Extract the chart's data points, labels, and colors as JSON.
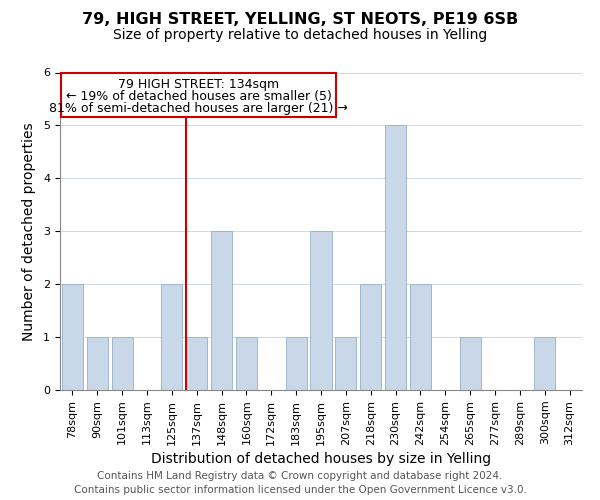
{
  "title": "79, HIGH STREET, YELLING, ST NEOTS, PE19 6SB",
  "subtitle": "Size of property relative to detached houses in Yelling",
  "xlabel": "Distribution of detached houses by size in Yelling",
  "ylabel": "Number of detached properties",
  "bins": [
    "78sqm",
    "90sqm",
    "101sqm",
    "113sqm",
    "125sqm",
    "137sqm",
    "148sqm",
    "160sqm",
    "172sqm",
    "183sqm",
    "195sqm",
    "207sqm",
    "218sqm",
    "230sqm",
    "242sqm",
    "254sqm",
    "265sqm",
    "277sqm",
    "289sqm",
    "300sqm",
    "312sqm"
  ],
  "values": [
    2,
    1,
    1,
    0,
    2,
    1,
    3,
    1,
    0,
    1,
    3,
    1,
    2,
    5,
    2,
    0,
    1,
    0,
    0,
    1,
    0
  ],
  "highlight_index": 5,
  "bar_color": "#c8d8e8",
  "highlight_line_color": "#cc0000",
  "bar_edge_color": "#a0b8cc",
  "ylim": [
    0,
    6
  ],
  "yticks": [
    0,
    1,
    2,
    3,
    4,
    5,
    6
  ],
  "annotation_lines": [
    "79 HIGH STREET: 134sqm",
    "← 19% of detached houses are smaller (5)",
    "81% of semi-detached houses are larger (21) →"
  ],
  "footer_lines": [
    "Contains HM Land Registry data © Crown copyright and database right 2024.",
    "Contains public sector information licensed under the Open Government Licence v3.0."
  ],
  "title_fontsize": 11.5,
  "subtitle_fontsize": 10,
  "axis_label_fontsize": 10,
  "tick_fontsize": 8,
  "annotation_fontsize": 9,
  "footer_fontsize": 7.5,
  "grid_color": "#d0d8e0"
}
